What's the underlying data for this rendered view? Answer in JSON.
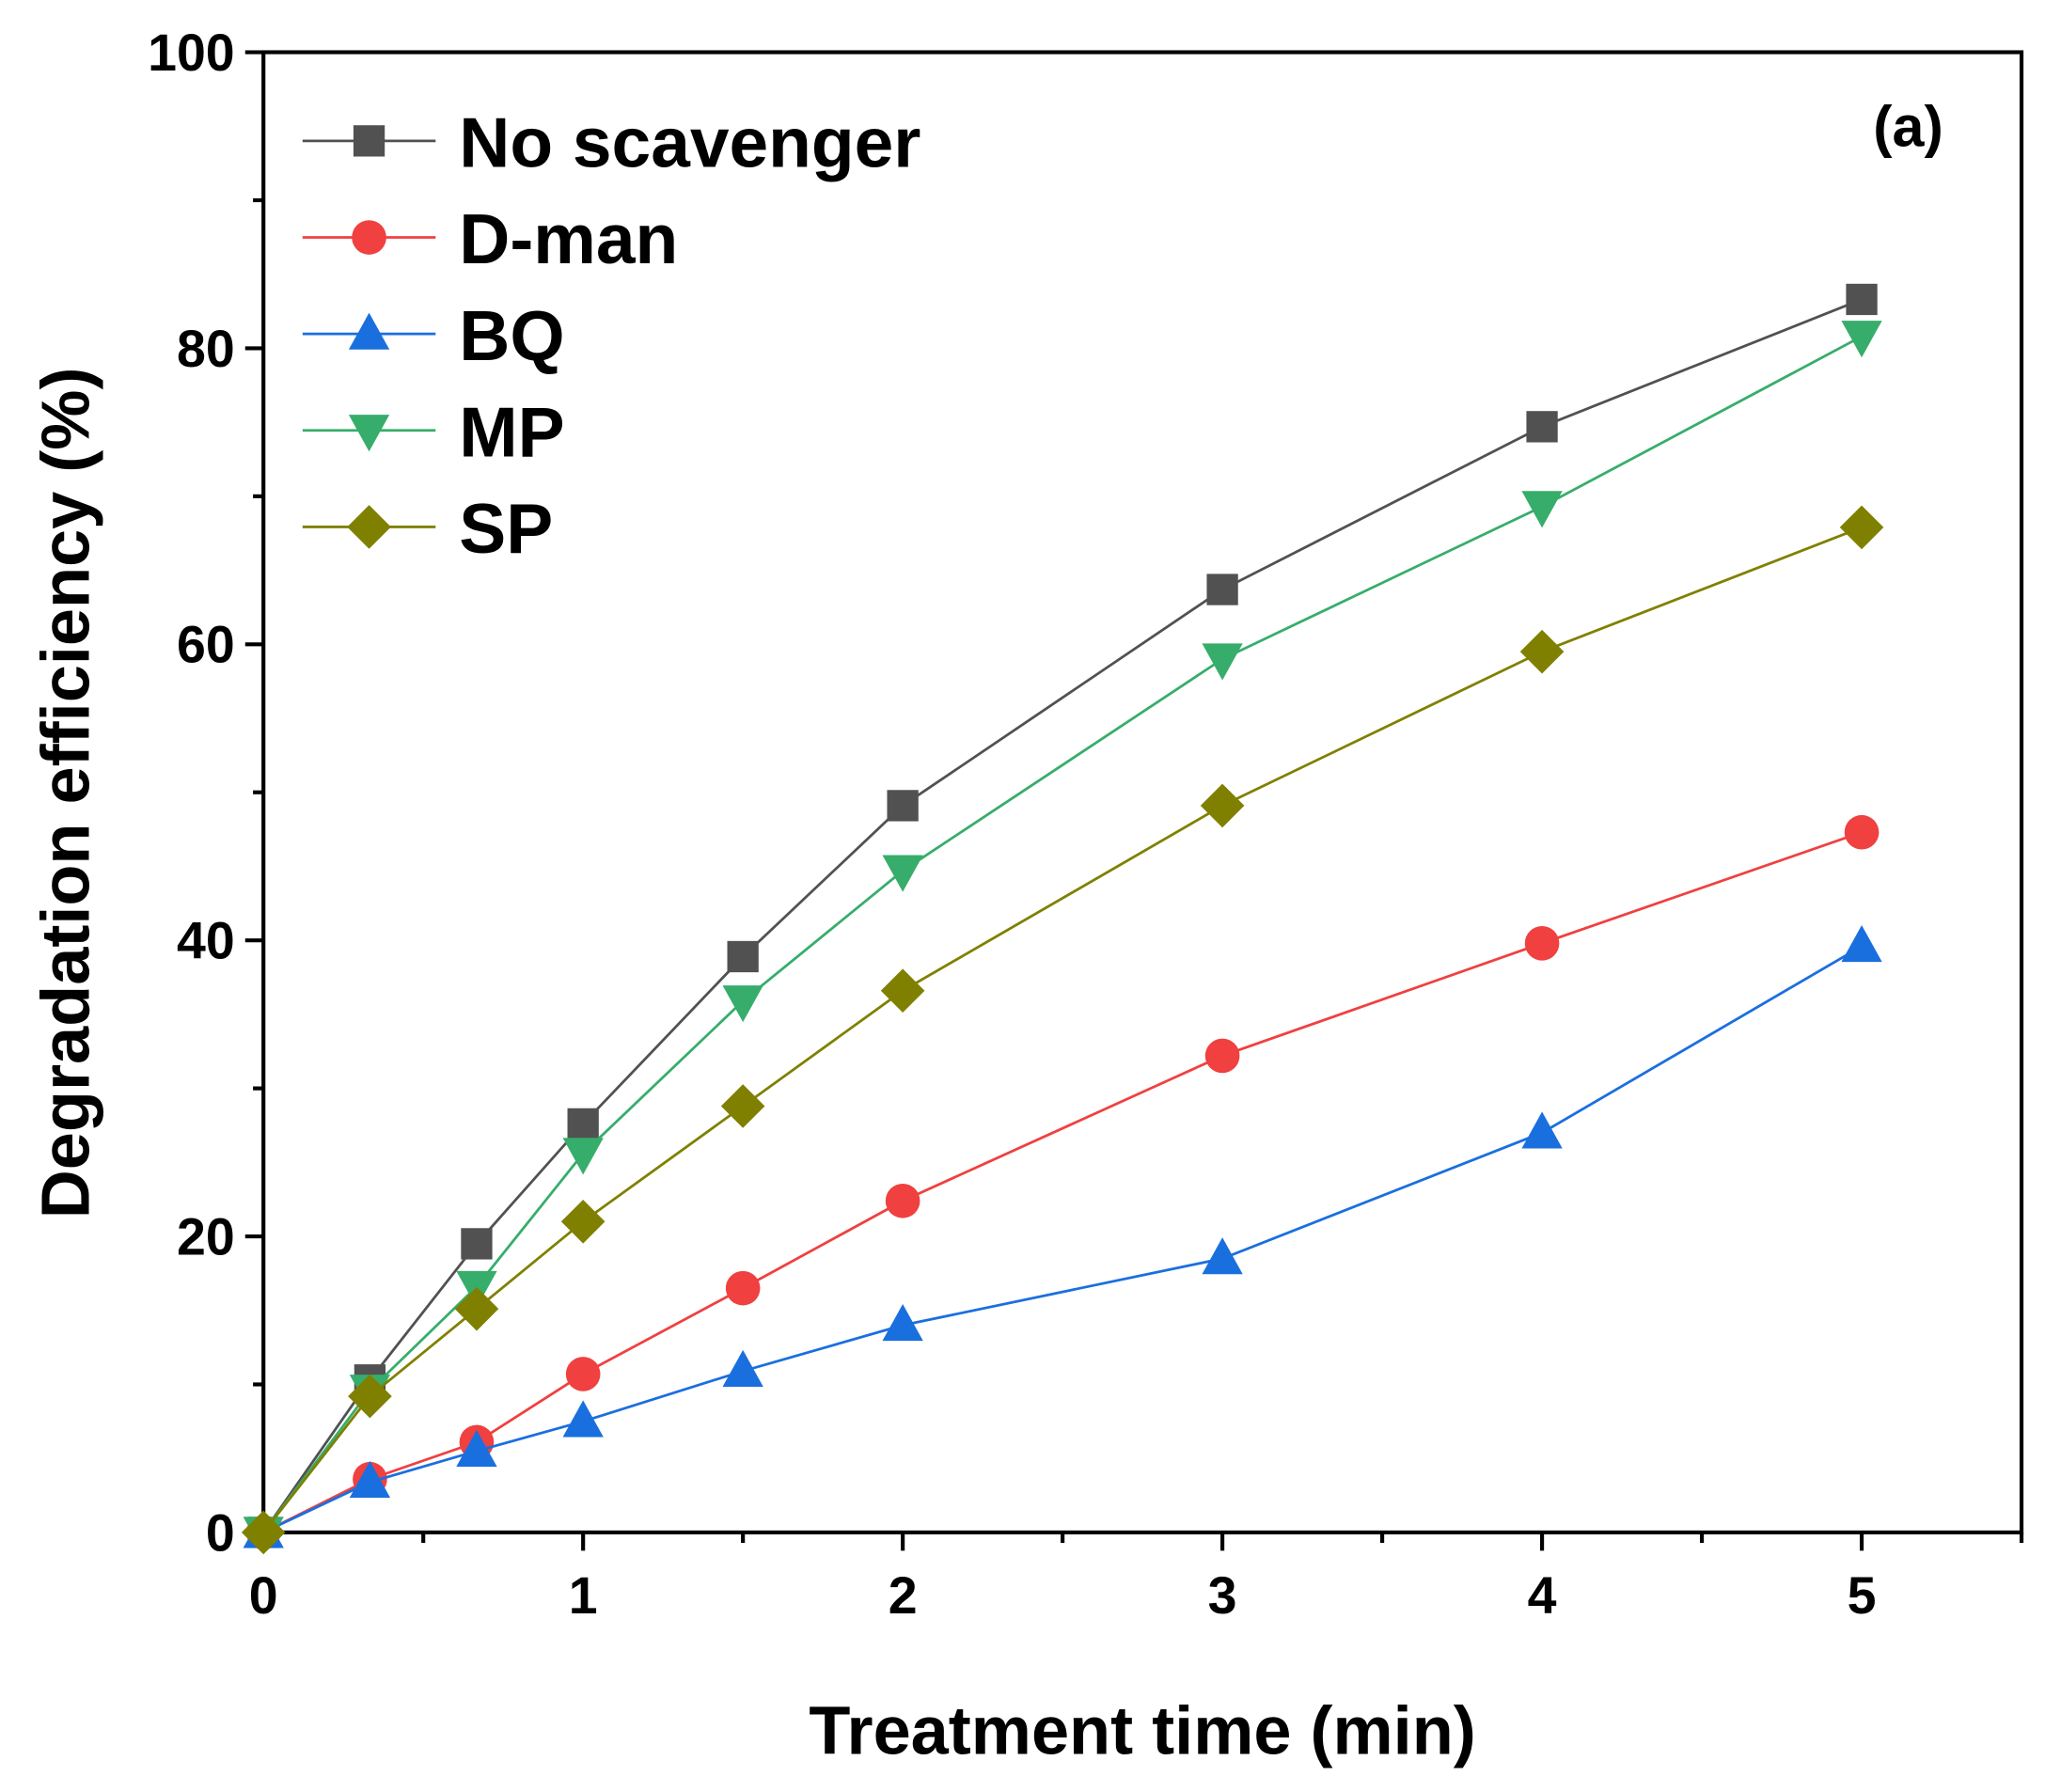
{
  "chart_data": {
    "type": "line",
    "panel_label": "(a)",
    "xlabel": "Treatment time (min)",
    "ylabel": "Degradation efficiency (%)",
    "xlim": [
      0,
      5.5
    ],
    "ylim": [
      0,
      100
    ],
    "xticks": [
      0,
      1,
      2,
      3,
      4,
      5
    ],
    "yticks": [
      0,
      20,
      40,
      60,
      80,
      100
    ],
    "grid": false,
    "legend_position": "top-left",
    "x": [
      0,
      0.333,
      0.667,
      1,
      1.5,
      2,
      3,
      4,
      5
    ],
    "series": [
      {
        "name": "No scavenger",
        "marker": "square",
        "color": "#515151",
        "values": [
          0,
          10.3,
          19.5,
          27.6,
          38.9,
          49.1,
          63.7,
          74.7,
          83.3
        ]
      },
      {
        "name": "D-man",
        "marker": "circle",
        "color": "#f04040",
        "values": [
          0,
          3.6,
          6.1,
          10.7,
          16.5,
          22.4,
          32.2,
          39.8,
          47.3
        ]
      },
      {
        "name": "BQ",
        "marker": "triangle-up",
        "color": "#1a6fdf",
        "values": [
          0,
          3.4,
          5.5,
          7.5,
          10.9,
          14.0,
          18.5,
          27.0,
          39.6
        ]
      },
      {
        "name": "MP",
        "marker": "triangle-down",
        "color": "#37ad6b",
        "values": [
          0,
          9.6,
          16.6,
          25.6,
          35.9,
          44.7,
          59.0,
          69.3,
          80.8
        ]
      },
      {
        "name": "SP",
        "marker": "diamond",
        "color": "#808000",
        "values": [
          0,
          9.2,
          15.1,
          21.0,
          28.8,
          36.6,
          49.1,
          59.5,
          67.9
        ]
      }
    ]
  }
}
